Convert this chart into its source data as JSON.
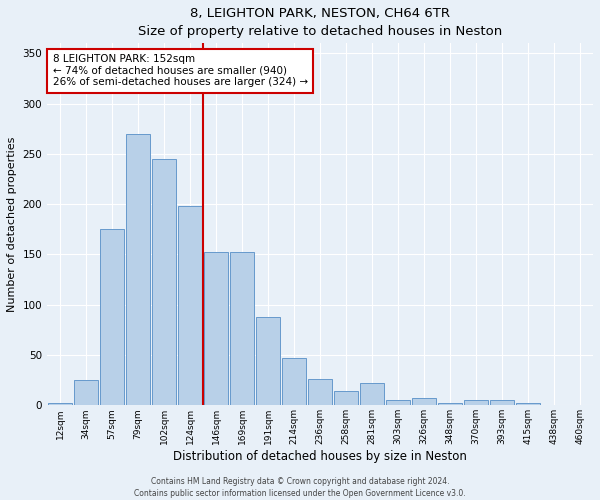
{
  "title": "8, LEIGHTON PARK, NESTON, CH64 6TR",
  "subtitle": "Size of property relative to detached houses in Neston",
  "xlabel": "Distribution of detached houses by size in Neston",
  "ylabel": "Number of detached properties",
  "bar_color": "#b8d0e8",
  "bar_edgecolor": "#6699cc",
  "background_color": "#e8f0f8",
  "fig_background": "#e8f0f8",
  "categories": [
    "12sqm",
    "34sqm",
    "57sqm",
    "79sqm",
    "102sqm",
    "124sqm",
    "146sqm",
    "169sqm",
    "191sqm",
    "214sqm",
    "236sqm",
    "258sqm",
    "281sqm",
    "303sqm",
    "326sqm",
    "348sqm",
    "370sqm",
    "393sqm",
    "415sqm",
    "438sqm",
    "460sqm"
  ],
  "values": [
    2,
    25,
    175,
    270,
    245,
    198,
    152,
    152,
    88,
    47,
    26,
    14,
    22,
    5,
    7,
    2,
    5,
    5,
    2,
    0,
    0
  ],
  "ylim": [
    0,
    360
  ],
  "yticks": [
    0,
    50,
    100,
    150,
    200,
    250,
    300,
    350
  ],
  "line_x_index": 6,
  "annotation_text": "8 LEIGHTON PARK: 152sqm\n← 74% of detached houses are smaller (940)\n26% of semi-detached houses are larger (324) →",
  "annotation_box_color": "#ffffff",
  "annotation_border_color": "#cc0000",
  "line_color": "#cc0000",
  "footer1": "Contains HM Land Registry data © Crown copyright and database right 2024.",
  "footer2": "Contains public sector information licensed under the Open Government Licence v3.0."
}
